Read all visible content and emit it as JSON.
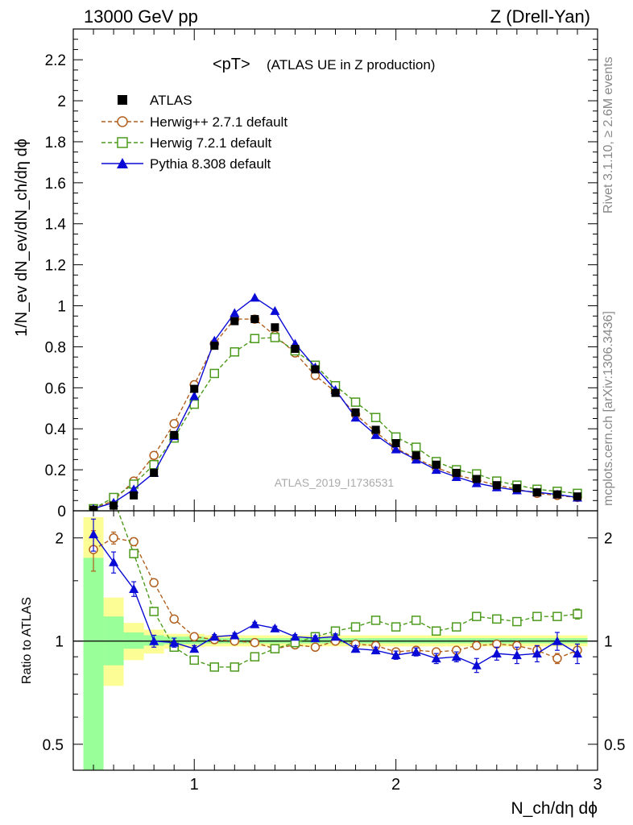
{
  "header": {
    "left": "13000 GeV pp",
    "right": "Z (Drell-Yan)"
  },
  "side_text": {
    "rivet": "Rivet 3.1.10, ≥ 2.6M events",
    "mcplots": "mcplots.cern.ch [arXiv:1306.3436]"
  },
  "watermark": "ATLAS_2019_I1736531",
  "chart_data": [
    {
      "type": "scatter",
      "panel": "main",
      "title": "<pT>",
      "subtitle": "(ATLAS UE in Z production)",
      "xlabel": "N_ch/dη dϕ",
      "ylabel": "1/N_ev dN_ev/dN_ch/dη dϕ",
      "xlim": [
        0.4,
        3.0
      ],
      "ylim": [
        0,
        2.35
      ],
      "yticks": [
        "0",
        "0.2",
        "0.4",
        "0.6",
        "0.8",
        "1",
        "1.2",
        "1.4",
        "1.6",
        "1.8",
        "2",
        "2.2"
      ],
      "xticks": [
        "1",
        "2",
        "3"
      ],
      "legend_position": "top-left",
      "x": [
        0.5,
        0.6,
        0.7,
        0.8,
        0.9,
        1.0,
        1.1,
        1.2,
        1.3,
        1.4,
        1.5,
        1.6,
        1.7,
        1.8,
        1.9,
        2.0,
        2.1,
        2.2,
        2.3,
        2.4,
        2.5,
        2.6,
        2.7,
        2.8,
        2.9
      ],
      "series": [
        {
          "name": "ATLAS",
          "color": "#000000",
          "marker": "square-filled",
          "values": [
            0.005,
            0.025,
            0.075,
            0.185,
            0.37,
            0.595,
            0.805,
            0.925,
            0.935,
            0.895,
            0.79,
            0.69,
            0.575,
            0.48,
            0.395,
            0.33,
            0.27,
            0.225,
            0.185,
            0.155,
            0.125,
            0.11,
            0.09,
            0.08,
            0.07
          ]
        },
        {
          "name": "Herwig++ 2.7.1 default",
          "color": "#b15f1e",
          "marker": "circle-open",
          "dashed": true,
          "values": [
            0.01,
            0.05,
            0.145,
            0.27,
            0.425,
            0.615,
            0.815,
            0.935,
            0.935,
            0.855,
            0.77,
            0.66,
            0.58,
            0.47,
            0.385,
            0.305,
            0.255,
            0.21,
            0.175,
            0.15,
            0.125,
            0.105,
            0.085,
            0.075,
            0.065
          ]
        },
        {
          "name": "Herwig 7.2.1 default",
          "color": "#4c9a1c",
          "marker": "square-open",
          "dashed": true,
          "values": [
            0.01,
            0.065,
            0.13,
            0.225,
            0.355,
            0.52,
            0.67,
            0.775,
            0.84,
            0.845,
            0.78,
            0.71,
            0.61,
            0.53,
            0.455,
            0.36,
            0.31,
            0.24,
            0.2,
            0.18,
            0.145,
            0.125,
            0.105,
            0.095,
            0.085
          ]
        },
        {
          "name": "Pythia 8.308 default",
          "color": "#0a0ad6",
          "marker": "triangle-filled",
          "dashed": false,
          "values": [
            0.01,
            0.04,
            0.105,
            0.185,
            0.365,
            0.56,
            0.83,
            0.965,
            1.04,
            0.975,
            0.815,
            0.7,
            0.59,
            0.455,
            0.37,
            0.3,
            0.25,
            0.2,
            0.165,
            0.135,
            0.115,
            0.1,
            0.09,
            0.08,
            0.065
          ]
        }
      ]
    },
    {
      "type": "scatter",
      "panel": "ratio",
      "ylabel": "Ratio to ATLAS",
      "yscale": "log",
      "ylim": [
        0.42,
        2.4
      ],
      "yticks": [
        "0.5",
        "1",
        "2"
      ],
      "xlim": [
        0.4,
        3.0
      ],
      "bands": {
        "x_edges": [
          0.45,
          0.55,
          0.65,
          0.75,
          0.85,
          0.95,
          1.05,
          1.15,
          1.25,
          1.35,
          1.45,
          1.55,
          1.65,
          1.75,
          1.85,
          1.95,
          2.05,
          2.15,
          2.25,
          2.35,
          2.45,
          2.55,
          2.65,
          2.75,
          2.85,
          2.95
        ],
        "green_low": [
          0.3,
          0.85,
          0.95,
          0.97,
          0.98,
          0.98,
          0.985,
          0.985,
          0.985,
          0.985,
          0.985,
          0.985,
          0.985,
          0.985,
          0.985,
          0.985,
          0.985,
          0.985,
          0.985,
          0.985,
          0.985,
          0.985,
          0.985,
          0.985,
          0.985
        ],
        "green_high": [
          1.75,
          1.18,
          1.06,
          1.04,
          1.03,
          1.03,
          1.02,
          1.02,
          1.02,
          1.02,
          1.02,
          1.02,
          1.02,
          1.02,
          1.02,
          1.02,
          1.02,
          1.02,
          1.02,
          1.02,
          1.02,
          1.02,
          1.02,
          1.02,
          1.02
        ],
        "yellow_low": [
          0.3,
          0.74,
          0.88,
          0.92,
          0.95,
          0.96,
          0.965,
          0.965,
          0.965,
          0.965,
          0.965,
          0.965,
          0.965,
          0.965,
          0.965,
          0.965,
          0.965,
          0.965,
          0.965,
          0.965,
          0.965,
          0.965,
          0.965,
          0.965,
          0.965
        ],
        "yellow_high": [
          2.3,
          1.34,
          1.13,
          1.08,
          1.05,
          1.05,
          1.04,
          1.04,
          1.04,
          1.04,
          1.04,
          1.04,
          1.04,
          1.04,
          1.04,
          1.04,
          1.04,
          1.04,
          1.04,
          1.04,
          1.04,
          1.04,
          1.04,
          1.04,
          1.04
        ]
      },
      "x": [
        0.5,
        0.6,
        0.7,
        0.8,
        0.9,
        1.0,
        1.1,
        1.2,
        1.3,
        1.4,
        1.5,
        1.6,
        1.7,
        1.8,
        1.9,
        2.0,
        2.1,
        2.2,
        2.3,
        2.4,
        2.5,
        2.6,
        2.7,
        2.8,
        2.9
      ],
      "series": [
        {
          "name": "Herwig++ 2.7.1 default",
          "color": "#b15f1e",
          "marker": "circle-open",
          "dashed": true,
          "values": [
            1.85,
            2.0,
            1.95,
            1.48,
            1.16,
            1.03,
            1.01,
            1.0,
            0.99,
            0.95,
            0.975,
            0.96,
            1.0,
            0.98,
            0.97,
            0.93,
            0.94,
            0.93,
            0.94,
            0.97,
            0.98,
            0.97,
            0.94,
            0.89,
            0.94
          ],
          "errors": [
            0.25,
            0.08,
            0.05,
            0.03,
            0.02,
            0.01,
            0.01,
            0.01,
            0.01,
            0.01,
            0.01,
            0.01,
            0.01,
            0.01,
            0.01,
            0.015,
            0.015,
            0.015,
            0.015,
            0.02,
            0.02,
            0.02,
            0.03,
            0.03,
            0.04
          ]
        },
        {
          "name": "Herwig 7.2.1 default",
          "color": "#4c9a1c",
          "marker": "square-open",
          "dashed": true,
          "values": [
            2.5,
            2.6,
            1.8,
            1.22,
            0.96,
            0.88,
            0.84,
            0.84,
            0.9,
            0.95,
            0.99,
            1.03,
            1.07,
            1.1,
            1.15,
            1.1,
            1.15,
            1.07,
            1.1,
            1.18,
            1.16,
            1.14,
            1.18,
            1.18,
            1.2
          ],
          "errors": [
            0.1,
            0.08,
            0.05,
            0.03,
            0.02,
            0.01,
            0.01,
            0.01,
            0.01,
            0.01,
            0.01,
            0.01,
            0.01,
            0.01,
            0.01,
            0.015,
            0.015,
            0.015,
            0.015,
            0.02,
            0.02,
            0.02,
            0.03,
            0.03,
            0.04
          ]
        },
        {
          "name": "Pythia 8.308 default",
          "color": "#0a0ad6",
          "marker": "triangle-filled",
          "dashed": false,
          "values": [
            2.05,
            1.7,
            1.42,
            1.0,
            0.99,
            0.95,
            1.03,
            1.04,
            1.12,
            1.09,
            1.03,
            1.02,
            1.03,
            0.95,
            0.94,
            0.91,
            0.93,
            0.89,
            0.9,
            0.85,
            0.92,
            0.91,
            0.92,
            1.0,
            0.92
          ],
          "errors": [
            0.22,
            0.12,
            0.07,
            0.04,
            0.03,
            0.02,
            0.015,
            0.015,
            0.015,
            0.015,
            0.015,
            0.015,
            0.02,
            0.02,
            0.02,
            0.025,
            0.025,
            0.03,
            0.03,
            0.04,
            0.04,
            0.05,
            0.05,
            0.06,
            0.06
          ]
        }
      ]
    }
  ]
}
